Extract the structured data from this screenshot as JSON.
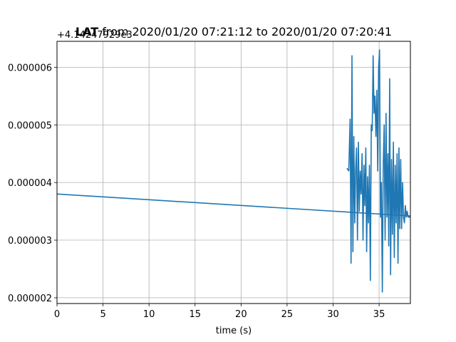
{
  "chart_data": {
    "type": "line",
    "title": "LAT from 2020/01/20 07:21:12 to 2020/01/20 07:20:41",
    "title_bold_part": "LAT",
    "title_rest": " from 2020/01/20 07:21:12 to 2020/01/20 07:20:41",
    "y_offset_label": "+4.14247929e3",
    "xlabel": "time (s)",
    "ylabel": "",
    "xlim": [
      0,
      38.4
    ],
    "ylim": [
      1.9e-06,
      6.45e-06
    ],
    "x_ticks": [
      0,
      5,
      10,
      15,
      20,
      25,
      30,
      35
    ],
    "x_tick_labels": [
      "0",
      "5",
      "10",
      "15",
      "20",
      "25",
      "30",
      "35"
    ],
    "y_ticks": [
      2e-06,
      3e-06,
      4e-06,
      5e-06,
      6e-06
    ],
    "y_tick_labels": [
      "0.000002",
      "0.000003",
      "0.000004",
      "0.000005",
      "0.000006"
    ],
    "grid": true,
    "series_color": "#1f77b4",
    "series": [
      {
        "name": "",
        "x": [
          0,
          38.4
        ],
        "y": [
          3.8e-06,
          3.42e-06
        ]
      },
      {
        "name": "",
        "x": [
          31.5,
          31.7,
          31.85,
          31.95,
          32.05,
          32.15,
          32.25,
          32.35,
          32.45,
          32.55,
          32.65,
          32.75,
          32.85,
          32.95,
          33.05,
          33.15,
          33.25,
          33.35,
          33.45,
          33.55,
          33.65,
          33.75,
          33.85,
          33.95,
          34.05,
          34.15,
          34.25,
          34.35,
          34.45,
          34.55,
          34.65,
          34.75,
          34.85,
          34.95,
          35.05,
          35.15,
          35.25,
          35.35,
          35.45,
          35.55,
          35.65,
          35.75,
          35.85,
          35.95,
          36.05,
          36.15,
          36.25,
          36.35,
          36.45,
          36.55,
          36.65,
          36.75,
          36.85,
          36.95,
          37.05,
          37.15,
          37.25,
          37.35,
          37.45,
          37.55,
          37.65,
          37.75,
          37.85,
          37.95,
          38.05,
          38.15,
          38.25,
          38.35
        ],
        "y": [
          4.25e-06,
          4.2e-06,
          5.1e-06,
          2.6e-06,
          6.2e-06,
          2.8e-06,
          4.8e-06,
          3.3e-06,
          4.2e-06,
          4.6e-06,
          3e-06,
          4.7e-06,
          3.5e-06,
          4.2e-06,
          3.8e-06,
          4.5e-06,
          3e-06,
          4.3e-06,
          3.6e-06,
          4.6e-06,
          2.8e-06,
          4.1e-06,
          3.3e-06,
          4.3e-06,
          2.3e-06,
          5e-06,
          4.9e-06,
          6.2e-06,
          5.2e-06,
          5.5e-06,
          4.8e-06,
          5.6e-06,
          4.2e-06,
          6e-06,
          6.3e-06,
          3.4e-06,
          4e-06,
          2.1e-06,
          4.3e-06,
          5e-06,
          3e-06,
          5.2e-06,
          3.4e-06,
          4.5e-06,
          2.9e-06,
          5.8e-06,
          2.4e-06,
          4.4e-06,
          3.1e-06,
          4.7e-06,
          2.7e-06,
          4.3e-06,
          3.3e-06,
          4.5e-06,
          2.6e-06,
          4.6e-06,
          3.2e-06,
          4.4e-06,
          3.2e-06,
          4e-06,
          3.4e-06,
          3.3e-06,
          3.6e-06,
          3.4e-06,
          3.5e-06,
          3.4e-06,
          3.4e-06,
          3.4e-06
        ]
      }
    ]
  }
}
